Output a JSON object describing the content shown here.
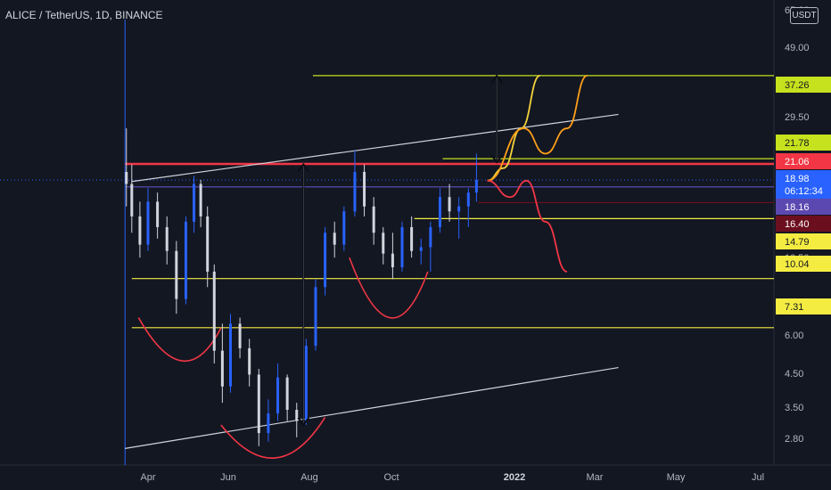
{
  "header": {
    "symbol": "ALICE / TetherUS, 1D, BINANCE",
    "currency": "USDT"
  },
  "chart_data": {
    "type": "candlestick",
    "scale": "log",
    "exchange": "BINANCE",
    "interval": "1D",
    "pair": "ALICE / TetherUS",
    "price_axis_ticks": [
      "65.00",
      "49.00",
      "29.50",
      "6.00",
      "4.50",
      "3.50",
      "2.80",
      "10.50"
    ],
    "time_axis_ticks": [
      "Apr",
      "Jun",
      "Aug",
      "Oct",
      "2022",
      "Mar",
      "May",
      "Jul"
    ],
    "price_labels": [
      {
        "text": "37.26",
        "value": 37.26,
        "bg": "#c6e11d",
        "fg": "#131722",
        "pos": 0
      },
      {
        "text": "21.78",
        "value": 21.78,
        "bg": "#c6e11d",
        "fg": "#131722",
        "pos": 1
      },
      {
        "text": "21.06",
        "value": 21.06,
        "bg": "#f23645",
        "fg": "#ffffff",
        "pos": 2
      },
      {
        "text": "18.98",
        "value": 18.98,
        "bg": "#2962ff",
        "fg": "#ffffff",
        "pos": 3
      },
      {
        "text": "06:12:34",
        "value": null,
        "bg": "#2962ff",
        "fg": "#ffffff",
        "pos": 4
      },
      {
        "text": "18.16",
        "value": 18.16,
        "bg": "#5b48b0",
        "fg": "#ffffff",
        "pos": 5
      },
      {
        "text": "16.40",
        "value": 16.4,
        "bg": "#6b0f1f",
        "fg": "#ffffff",
        "pos": 6
      },
      {
        "text": "14.79",
        "value": 14.79,
        "bg": "#f5ec42",
        "fg": "#131722",
        "pos": 7
      },
      {
        "text": "10.04",
        "value": 10.04,
        "bg": "#f5ec42",
        "fg": "#131722",
        "pos": 8
      },
      {
        "text": "7.31",
        "value": 7.31,
        "bg": "#f5ec42",
        "fg": "#131722",
        "pos": 9
      }
    ],
    "horizontal_levels": [
      {
        "value": 37.26,
        "color": "#c6e11d",
        "from": "2021-08-01"
      },
      {
        "value": 21.78,
        "color": "#c6e11d",
        "from": "2021-11-05"
      },
      {
        "value": 21.06,
        "color": "#f23645",
        "from": "2021-03-15"
      },
      {
        "value": 18.16,
        "color": "#5b48b0",
        "from": "2021-03-15"
      },
      {
        "value": 16.4,
        "color": "#6b0f1f",
        "from": "2021-12-01"
      },
      {
        "value": 14.79,
        "color": "#f5ec42",
        "from": "2021-10-15"
      },
      {
        "value": 10.04,
        "color": "#f5ec42",
        "from": "2021-03-20"
      },
      {
        "value": 7.31,
        "color": "#f5ec42",
        "from": "2021-03-20"
      }
    ],
    "trend_lines": [
      {
        "from": [
          "2021-03-20",
          18.8
        ],
        "to": [
          "2022-03-15",
          29.0
        ],
        "color": "#d1d4dc"
      },
      {
        "from": [
          "2021-03-15",
          3.35
        ],
        "to": [
          "2022-03-15",
          5.65
        ],
        "color": "#d1d4dc"
      }
    ],
    "measure_arrows": [
      {
        "date": "2021-07-25",
        "from": 3.9,
        "to": 21.0
      },
      {
        "date": "2021-12-15",
        "from": 21.3,
        "to": 37.2
      }
    ],
    "projection_paths": [
      {
        "color": "#f5d33a",
        "points": [
          [
            "2021-12-08",
            18.9
          ],
          [
            "2021-12-20",
            20.5
          ],
          [
            "2022-01-02",
            26.5
          ],
          [
            "2022-01-16",
            37.26
          ]
        ]
      },
      {
        "color": "#ff9f1a",
        "points": [
          [
            "2021-12-08",
            18.9
          ],
          [
            "2022-01-04",
            26.5
          ],
          [
            "2022-01-20",
            22.5
          ],
          [
            "2022-02-05",
            26.5
          ],
          [
            "2022-02-20",
            37.26
          ]
        ]
      },
      {
        "color": "#f23645",
        "points": [
          [
            "2021-12-08",
            18.9
          ],
          [
            "2021-12-25",
            17.0
          ],
          [
            "2022-01-06",
            18.9
          ],
          [
            "2022-01-20",
            14.5
          ],
          [
            "2022-02-05",
            10.5
          ]
        ]
      }
    ],
    "close_price": 18.98,
    "countdown": "06:12:34",
    "series": [
      {
        "values": [
          [
            "2021-03-16",
            20.0,
            26.5,
            16.0,
            18.5
          ],
          [
            "2021-03-20",
            18.5,
            21.0,
            13.5,
            15.0
          ],
          [
            "2021-03-26",
            15.0,
            16.5,
            11.5,
            12.5
          ],
          [
            "2021-04-01",
            12.5,
            18.0,
            12.0,
            16.5
          ],
          [
            "2021-04-08",
            16.5,
            17.5,
            13.0,
            14.0
          ],
          [
            "2021-04-15",
            14.0,
            15.0,
            11.0,
            12.0
          ],
          [
            "2021-04-22",
            12.0,
            12.8,
            8.0,
            8.8
          ],
          [
            "2021-04-29",
            8.8,
            15.0,
            8.5,
            14.5
          ],
          [
            "2021-05-05",
            14.5,
            19.5,
            13.5,
            18.5
          ],
          [
            "2021-05-10",
            18.5,
            19.0,
            14.0,
            15.0
          ],
          [
            "2021-05-15",
            15.0,
            16.0,
            9.5,
            10.5
          ],
          [
            "2021-05-20",
            10.5,
            11.0,
            5.8,
            6.3
          ],
          [
            "2021-05-26",
            6.3,
            7.5,
            4.5,
            5.0
          ],
          [
            "2021-06-01",
            5.0,
            8.0,
            4.8,
            7.5
          ],
          [
            "2021-06-08",
            7.5,
            7.8,
            6.0,
            6.4
          ],
          [
            "2021-06-15",
            6.4,
            6.8,
            5.0,
            5.4
          ],
          [
            "2021-06-22",
            5.4,
            5.6,
            3.4,
            3.7
          ],
          [
            "2021-06-29",
            3.7,
            4.6,
            3.5,
            4.2
          ],
          [
            "2021-07-06",
            4.2,
            5.8,
            4.0,
            5.3
          ],
          [
            "2021-07-13",
            5.3,
            5.4,
            4.0,
            4.3
          ],
          [
            "2021-07-20",
            4.3,
            4.5,
            3.6,
            4.0
          ],
          [
            "2021-07-27",
            4.0,
            6.8,
            3.9,
            6.5
          ],
          [
            "2021-08-03",
            6.5,
            10.0,
            6.3,
            9.5
          ],
          [
            "2021-08-10",
            9.5,
            14.0,
            9.0,
            13.5
          ],
          [
            "2021-08-17",
            13.5,
            14.5,
            11.5,
            12.5
          ],
          [
            "2021-08-24",
            12.5,
            16.0,
            12.0,
            15.5
          ],
          [
            "2021-09-01",
            15.5,
            23.0,
            15.0,
            20.0
          ],
          [
            "2021-09-08",
            20.0,
            21.0,
            15.0,
            16.0
          ],
          [
            "2021-09-15",
            16.0,
            17.0,
            12.5,
            13.5
          ],
          [
            "2021-09-22",
            13.5,
            14.0,
            11.0,
            11.8
          ],
          [
            "2021-09-29",
            11.8,
            13.5,
            10.0,
            10.8
          ],
          [
            "2021-10-06",
            10.8,
            14.5,
            10.5,
            14.0
          ],
          [
            "2021-10-13",
            14.0,
            15.0,
            11.5,
            12.0
          ],
          [
            "2021-10-20",
            12.0,
            13.0,
            11.0,
            12.3
          ],
          [
            "2021-10-27",
            12.3,
            14.5,
            10.5,
            14.0
          ],
          [
            "2021-11-03",
            14.0,
            18.0,
            13.5,
            17.0
          ],
          [
            "2021-11-10",
            17.0,
            18.5,
            14.5,
            15.5
          ],
          [
            "2021-11-17",
            15.5,
            17.0,
            13.0,
            16.0
          ],
          [
            "2021-11-24",
            16.0,
            18.0,
            14.0,
            17.5
          ],
          [
            "2021-11-30",
            17.5,
            22.5,
            16.5,
            18.98
          ]
        ]
      }
    ]
  }
}
